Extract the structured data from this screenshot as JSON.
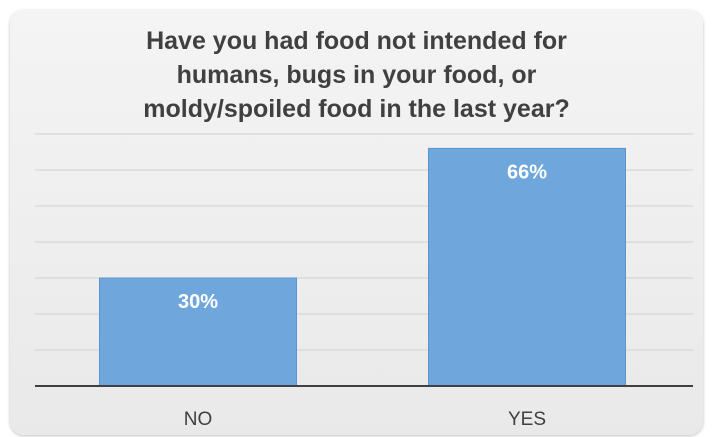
{
  "chart_data": {
    "type": "bar",
    "title": "Have you had food not intended for\nhumans, bugs in your food, or\nmoldy/spoiled  food in the last year?",
    "categories": [
      "NO",
      "YES"
    ],
    "values": [
      30,
      66
    ],
    "data_labels": [
      "30%",
      "66%"
    ],
    "ylim": [
      0,
      70
    ],
    "grid": true,
    "legend": "none",
    "colors": {
      "bar": "#6fa7dc",
      "bar_edge": "#5b95cd",
      "gridline": "#d0d0d0",
      "axis": "#404040",
      "label": "#ffffff",
      "category_text": "#404040"
    }
  }
}
